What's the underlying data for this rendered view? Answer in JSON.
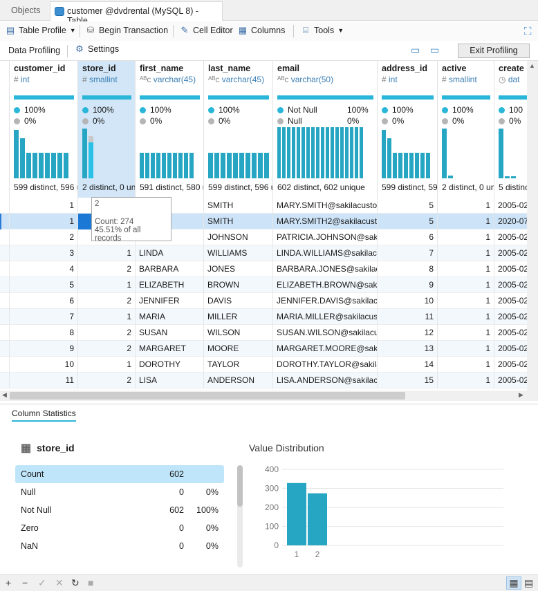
{
  "tabs": {
    "objects": "Objects",
    "table": "customer @dvdrental (MySQL 8) - Table"
  },
  "toolbar": {
    "table_profile": "Table Profile",
    "begin_transaction": "Begin Transaction",
    "cell_editor": "Cell Editor",
    "columns": "Columns",
    "tools": "Tools"
  },
  "profile_bar": {
    "data_profiling": "Data Profiling",
    "settings": "Settings",
    "exit_profiling": "Exit Profiling"
  },
  "columns": [
    {
      "name": "customer_id",
      "type": "int",
      "icon": "hash-icon",
      "stats": [
        {
          "label": "100%"
        },
        {
          "label": "0%"
        }
      ],
      "distinct": "599 distinct, 596 u",
      "hist": [
        0.95,
        0.78,
        0.5,
        0.5,
        0.5,
        0.5,
        0.5,
        0.5,
        0.5
      ]
    },
    {
      "name": "store_id",
      "type": "smallint",
      "icon": "hash-icon",
      "stats": [
        {
          "label": "100%"
        },
        {
          "label": "0%"
        }
      ],
      "distinct": "2 distinct, 0 un",
      "hist": [
        0.97,
        0.82
      ]
    },
    {
      "name": "first_name",
      "type": "varchar(45)",
      "icon": "text-icon",
      "stats": [
        {
          "label": "100%"
        },
        {
          "label": "0%"
        }
      ],
      "distinct": "591 distinct, 580 u",
      "hist": [
        0.5,
        0.5,
        0.5,
        0.5,
        0.5,
        0.5,
        0.5,
        0.5,
        0.5,
        0.5
      ]
    },
    {
      "name": "last_name",
      "type": "varchar(45)",
      "icon": "text-icon",
      "stats": [
        {
          "label": "100%"
        },
        {
          "label": "0%"
        }
      ],
      "distinct": "599 distinct, 596 u",
      "hist": [
        0.5,
        0.5,
        0.5,
        0.5,
        0.5,
        0.5,
        0.5,
        0.5,
        0.5,
        0.5
      ]
    },
    {
      "name": "email",
      "type": "varchar(50)",
      "icon": "text-icon",
      "stats": [
        {
          "label": "Not Null",
          "value": "100%"
        },
        {
          "label": "Null",
          "value": "0%"
        }
      ],
      "distinct": "602 distinct, 602 unique",
      "hist": [
        1,
        1,
        1,
        1,
        1,
        1,
        1,
        1,
        1,
        1,
        1,
        1,
        1,
        1,
        1,
        1,
        1,
        1
      ]
    },
    {
      "name": "address_id",
      "type": "int",
      "icon": "hash-icon",
      "stats": [
        {
          "label": "100%"
        },
        {
          "label": "0%"
        }
      ],
      "distinct": "599 distinct, 59",
      "hist": [
        0.95,
        0.78,
        0.5,
        0.5,
        0.5,
        0.5,
        0.5,
        0.5,
        0.5
      ]
    },
    {
      "name": "active",
      "type": "smallint",
      "icon": "hash-icon",
      "stats": [
        {
          "label": "100%"
        },
        {
          "label": "0%"
        }
      ],
      "distinct": "2 distinct, 0 un",
      "hist": [
        0.97,
        0.05
      ]
    },
    {
      "name": "create",
      "type": "dat",
      "icon": "clock-icon",
      "stats": [
        {
          "label": "100"
        },
        {
          "label": "0%"
        }
      ],
      "distinct": "5 distinc",
      "hist": [
        0.97,
        0.04,
        0.04
      ]
    }
  ],
  "rows": [
    [
      "1",
      "",
      "",
      "SMITH",
      "MARY.SMITH@sakilacusto",
      "5",
      "1",
      "2005-02"
    ],
    [
      "1",
      "",
      "",
      "SMITH",
      "MARY.SMITH2@sakilacust",
      "5",
      "1",
      "2020-07"
    ],
    [
      "2",
      "",
      "",
      "JOHNSON",
      "PATRICIA.JOHNSON@saki",
      "6",
      "1",
      "2005-02"
    ],
    [
      "3",
      "1",
      "LINDA",
      "WILLIAMS",
      "LINDA.WILLIAMS@sakilacu",
      "7",
      "1",
      "2005-02"
    ],
    [
      "4",
      "2",
      "BARBARA",
      "JONES",
      "BARBARA.JONES@sakilacu",
      "8",
      "1",
      "2005-02"
    ],
    [
      "5",
      "1",
      "ELIZABETH",
      "BROWN",
      "ELIZABETH.BROWN@sakil",
      "9",
      "1",
      "2005-02"
    ],
    [
      "6",
      "2",
      "JENNIFER",
      "DAVIS",
      "JENNIFER.DAVIS@sakilacu:",
      "10",
      "1",
      "2005-02"
    ],
    [
      "7",
      "1",
      "MARIA",
      "MILLER",
      "MARIA.MILLER@sakilacust",
      "11",
      "1",
      "2005-02"
    ],
    [
      "8",
      "2",
      "SUSAN",
      "WILSON",
      "SUSAN.WILSON@sakilacus",
      "12",
      "1",
      "2005-02"
    ],
    [
      "9",
      "2",
      "MARGARET",
      "MOORE",
      "MARGARET.MOORE@sakil",
      "13",
      "1",
      "2005-02"
    ],
    [
      "10",
      "1",
      "DOROTHY",
      "TAYLOR",
      "DOROTHY.TAYLOR@sakila",
      "14",
      "1",
      "2005-02"
    ],
    [
      "11",
      "2",
      "LISA",
      "ANDERSON",
      "LISA.ANDERSON@sakilacu",
      "15",
      "1",
      "2005-02"
    ]
  ],
  "tooltip": {
    "value": "2",
    "count": "Count: 274",
    "pct": "45.51% of all records"
  },
  "column_stats": {
    "tab": "Column Statistics",
    "column": "store_id",
    "rows": [
      {
        "label": "Count",
        "value": "602",
        "pct": ""
      },
      {
        "label": "Null",
        "value": "0",
        "pct": "0%"
      },
      {
        "label": "Not Null",
        "value": "602",
        "pct": "100%"
      },
      {
        "label": "Zero",
        "value": "0",
        "pct": "0%"
      },
      {
        "label": "NaN",
        "value": "0",
        "pct": "0%"
      }
    ]
  },
  "chart_data": {
    "type": "bar",
    "title": "Value Distribution",
    "categories": [
      "1",
      "2"
    ],
    "values": [
      328,
      274
    ],
    "ylim": [
      0,
      400
    ],
    "yticks": [
      0,
      100,
      200,
      300,
      400
    ],
    "color": "#26a6c2"
  },
  "colors": {
    "accent": "#29b6d8",
    "selection": "#d2e6f7",
    "bar": "#26a6c2"
  }
}
